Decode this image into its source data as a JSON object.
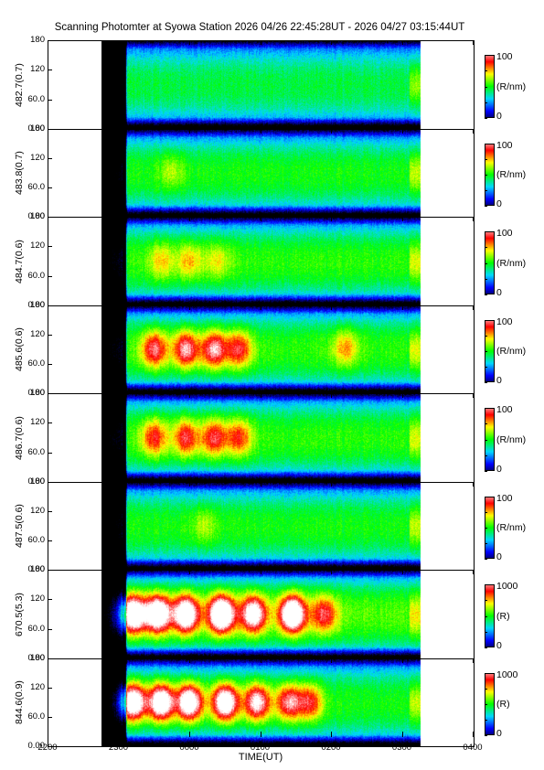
{
  "title": "Scanning Photomter at Syowa Station  2026 04/26 22:45:28UT - 2026 04/27 03:15:44UT",
  "chart_data": {
    "type": "heatmap",
    "title": "Scanning Photomter at Syowa Station  2026 04/26 22:45:28UT - 2026 04/27 03:15:44UT",
    "xlabel": "TIME(UT)",
    "x_ticks": [
      "2200",
      "2300",
      "0000",
      "0100",
      "0200",
      "0300",
      "0400"
    ],
    "xlim_hours": [
      22.0,
      28.0
    ],
    "data_range_hours": [
      22.7578,
      27.2622
    ],
    "y_ticks": [
      "0.00",
      "60.0",
      "120",
      "180"
    ],
    "ylim": [
      0,
      180
    ],
    "colormap": [
      "#000000",
      "#0000ff",
      "#00d8ff",
      "#00ff00",
      "#ffff00",
      "#ff0000",
      "#ffffff"
    ],
    "panels": [
      {
        "name": "482.7(0.7)",
        "cbar_min": "0",
        "cbar_max": "100",
        "unit": "(R/nm)",
        "base_intensity": 0.46,
        "bright_patches": []
      },
      {
        "name": "483.8(0.7)",
        "cbar_min": "0",
        "cbar_max": "100",
        "unit": "(R/nm)",
        "base_intensity": 0.5,
        "bright_patches": [
          {
            "t": 23.75,
            "el": 95,
            "i": 0.12
          }
        ]
      },
      {
        "name": "484.7(0.6)",
        "cbar_min": "0",
        "cbar_max": "100",
        "unit": "(R/nm)",
        "base_intensity": 0.52,
        "bright_patches": [
          {
            "t": 23.6,
            "el": 92,
            "i": 0.18
          },
          {
            "t": 24.0,
            "el": 92,
            "i": 0.2
          },
          {
            "t": 24.4,
            "el": 92,
            "i": 0.15
          }
        ]
      },
      {
        "name": "485.6(0.6)",
        "cbar_min": "0",
        "cbar_max": "100",
        "unit": "(R/nm)",
        "base_intensity": 0.52,
        "bright_patches": [
          {
            "t": 23.5,
            "el": 92,
            "i": 0.4
          },
          {
            "t": 23.95,
            "el": 92,
            "i": 0.45
          },
          {
            "t": 24.35,
            "el": 92,
            "i": 0.45
          },
          {
            "t": 24.7,
            "el": 92,
            "i": 0.35
          },
          {
            "t": 26.2,
            "el": 95,
            "i": 0.22
          }
        ]
      },
      {
        "name": "486.7(0.6)",
        "cbar_min": "0",
        "cbar_max": "100",
        "unit": "(R/nm)",
        "base_intensity": 0.52,
        "bright_patches": [
          {
            "t": 23.5,
            "el": 92,
            "i": 0.33
          },
          {
            "t": 23.95,
            "el": 92,
            "i": 0.36
          },
          {
            "t": 24.35,
            "el": 92,
            "i": 0.36
          },
          {
            "t": 24.7,
            "el": 92,
            "i": 0.3
          }
        ]
      },
      {
        "name": "487.5(0.6)",
        "cbar_min": "0",
        "cbar_max": "100",
        "unit": "(R/nm)",
        "base_intensity": 0.5,
        "bright_patches": [
          {
            "t": 24.2,
            "el": 92,
            "i": 0.12
          }
        ]
      },
      {
        "name": "670.5(5.3)",
        "cbar_min": "0",
        "cbar_max": "1000",
        "unit": "(R)",
        "base_intensity": 0.55,
        "bright_patches": [
          {
            "t": 23.2,
            "el": 92,
            "i": 0.7
          },
          {
            "t": 23.55,
            "el": 92,
            "i": 0.7
          },
          {
            "t": 23.95,
            "el": 92,
            "i": 0.7
          },
          {
            "t": 24.45,
            "el": 92,
            "i": 0.8
          },
          {
            "t": 24.9,
            "el": 92,
            "i": 0.6
          },
          {
            "t": 25.45,
            "el": 92,
            "i": 0.75
          },
          {
            "t": 25.9,
            "el": 92,
            "i": 0.35
          }
        ]
      },
      {
        "name": "844.6(0.9)",
        "cbar_min": "0",
        "cbar_max": "1000",
        "unit": "(R)",
        "base_intensity": 0.5,
        "bright_patches": [
          {
            "t": 23.2,
            "el": 92,
            "i": 0.7
          },
          {
            "t": 23.6,
            "el": 92,
            "i": 0.7
          },
          {
            "t": 24.0,
            "el": 92,
            "i": 0.7
          },
          {
            "t": 24.5,
            "el": 92,
            "i": 0.7
          },
          {
            "t": 24.95,
            "el": 92,
            "i": 0.55
          },
          {
            "t": 25.4,
            "el": 92,
            "i": 0.45
          },
          {
            "t": 25.7,
            "el": 92,
            "i": 0.35
          }
        ]
      }
    ]
  }
}
